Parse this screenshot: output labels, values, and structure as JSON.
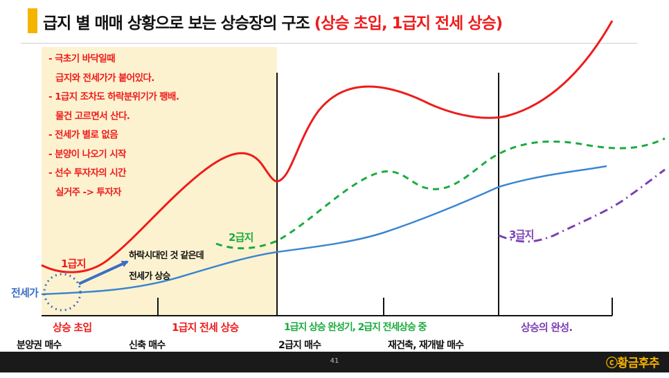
{
  "title": {
    "main": "급지 별 매매 상황으로 보는 상승장의 구조",
    "highlight": "(상승 초입, 1급지 전세 상승)"
  },
  "notes": [
    "- 극초기 바닥일때",
    "  급지와 전세가가 붙어있다.",
    "- 1급지 조차도 하락분위기가 팽배.",
    "  물건 고르면서 산다.",
    "- 전세가 별로 없음",
    "- 분양이 나오기 시작",
    "- 선수 투자자의 시간",
    "  실거주 -> 투자자"
  ],
  "curve_labels": {
    "tier1": "1급지",
    "tier2": "2급지",
    "tier3": "3급지",
    "jeonse": "전세가"
  },
  "annotation": {
    "line1": "하락시대인 것 같은데",
    "line2": "전세가 상승"
  },
  "phases": [
    {
      "label": "상승 초입",
      "color": "#ee1c1c",
      "buy": "분양권 매수"
    },
    {
      "label": "1급지 전세 상승",
      "color": "#ee1c1c",
      "buy": "신축 매수"
    },
    {
      "label": "1급지 상승 완성기, 2급지 전세상승 중",
      "color": "#1bab3f",
      "buy": "2급지 매수"
    },
    {
      "label": "상승의 완성.",
      "color": "#7b3fb5",
      "buy": "재건축, 재개발 매수"
    }
  ],
  "colors": {
    "tier1": "#ee1c1c",
    "tier2": "#1bab3f",
    "tier3": "#7b3fb5",
    "jeonse": "#3a86d1",
    "accent": "#f5b400"
  },
  "footer": {
    "page": "41",
    "copyright": "ⓒ황금후추"
  }
}
